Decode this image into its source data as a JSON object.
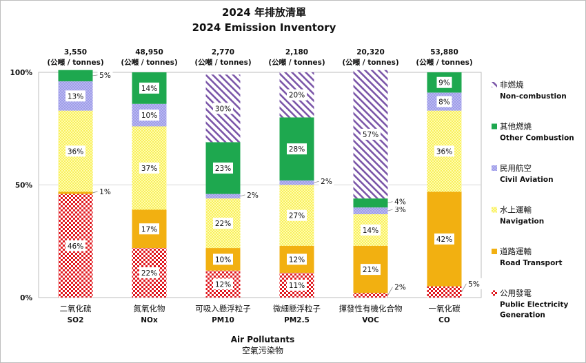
{
  "chart_data": {
    "type": "bar",
    "stacked": true,
    "percent_stacked": true,
    "title": "2024 年排放清單",
    "subtitle": "2024 Emission Inventory",
    "xlabel": "Air Pollutants",
    "xlabel_zh": "空氣污染物",
    "ylim": [
      0,
      100
    ],
    "yticks": [
      "0%",
      "50%",
      "100%"
    ],
    "grid": true,
    "legend_position": "right",
    "categories": [
      {
        "zh": "二氧化硫",
        "en": "SO2",
        "total": "3,550\n(公噸 / tonnes)"
      },
      {
        "zh": "氮氧化物",
        "en": "NOx",
        "total": "48,950\n(公噸 / tonnes)"
      },
      {
        "zh": "可吸入懸浮粒子",
        "en": "PM10",
        "total": "2,770\n(公噸 / tonnes)"
      },
      {
        "zh": "微細懸浮粒子",
        "en": "PM2.5",
        "total": "2,180\n(公噸 / tonnes)"
      },
      {
        "zh": "揮發性有機化合物",
        "en": "VOC",
        "total": "20,320\n(公噸 / tonnes)"
      },
      {
        "zh": "一氧化碳",
        "en": "CO",
        "total": "53,880\n(公噸 / tonnes)"
      }
    ],
    "series": [
      {
        "key": "ppg",
        "name_zh": "公用發電",
        "name_en": "Public Electricity Generation",
        "color": "#e0191f",
        "pattern": "dots-red",
        "values": [
          46,
          22,
          12,
          11,
          2,
          5
        ]
      },
      {
        "key": "road",
        "name_zh": "道路運輸",
        "name_en": "Road Transport",
        "color": "#f2b011",
        "pattern": "solid",
        "values": [
          1,
          17,
          10,
          12,
          21,
          42
        ]
      },
      {
        "key": "nav",
        "name_zh": "水上運輸",
        "name_en": "Navigation",
        "color": "#fff87a",
        "pattern": "dots-yellow",
        "values": [
          36,
          37,
          22,
          27,
          14,
          36
        ]
      },
      {
        "key": "avi",
        "name_zh": "民用航空",
        "name_en": "Civil Aviation",
        "color": "#a7a6ee",
        "pattern": "dots-purple",
        "values": [
          13,
          10,
          2,
          2,
          3,
          8
        ]
      },
      {
        "key": "oth",
        "name_zh": "其他燃燒",
        "name_en": "Other Combustion",
        "color": "#1ea84f",
        "pattern": "solid",
        "values": [
          5,
          14,
          23,
          28,
          4,
          9
        ]
      },
      {
        "key": "non",
        "name_zh": "非燃燒",
        "name_en": "Non-combustion",
        "color": "#7a55a8",
        "pattern": "diag",
        "values": [
          0,
          0,
          30,
          20,
          57,
          0
        ]
      }
    ]
  }
}
